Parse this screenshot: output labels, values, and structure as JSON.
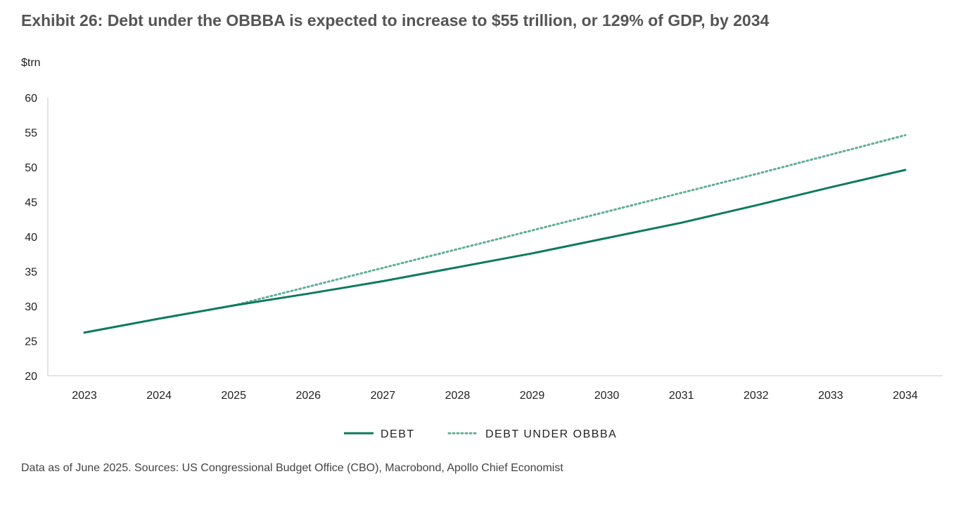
{
  "title": "Exhibit 26: Debt under the OBBBA is expected to increase to $55 trillion, or 129% of GDP, by 2034",
  "source_note": "Data as of June 2025. Sources: US Congressional Budget Office (CBO), Macrobond, Apollo Chief Economist",
  "colors": {
    "debt": "#0e7a5e",
    "obbba": "#5fae96",
    "axis": "#c8c8c8"
  },
  "chart_data": {
    "type": "line",
    "title": "Exhibit 26: Debt under the OBBBA is expected to increase to $55 trillion, or 129% of GDP, by 2034",
    "ylabel": "$trn",
    "xlabel": "",
    "ylim": [
      20,
      60
    ],
    "yticks": [
      20,
      25,
      30,
      35,
      40,
      45,
      50,
      55,
      60
    ],
    "categories": [
      "2023",
      "2024",
      "2025",
      "2026",
      "2027",
      "2028",
      "2029",
      "2030",
      "2031",
      "2032",
      "2033",
      "2034"
    ],
    "series": [
      {
        "name": "DEBT",
        "style": "solid",
        "values": [
          26.2,
          28.2,
          30.1,
          31.8,
          33.6,
          35.6,
          37.6,
          39.8,
          42.0,
          44.5,
          47.1,
          49.6
        ]
      },
      {
        "name": "DEBT UNDER OBBBA",
        "style": "dotted",
        "values": [
          26.2,
          28.2,
          30.1,
          32.8,
          35.5,
          38.2,
          40.9,
          43.6,
          46.3,
          49.0,
          51.8,
          54.6
        ]
      }
    ],
    "grid": false,
    "legend": "bottom-center"
  }
}
